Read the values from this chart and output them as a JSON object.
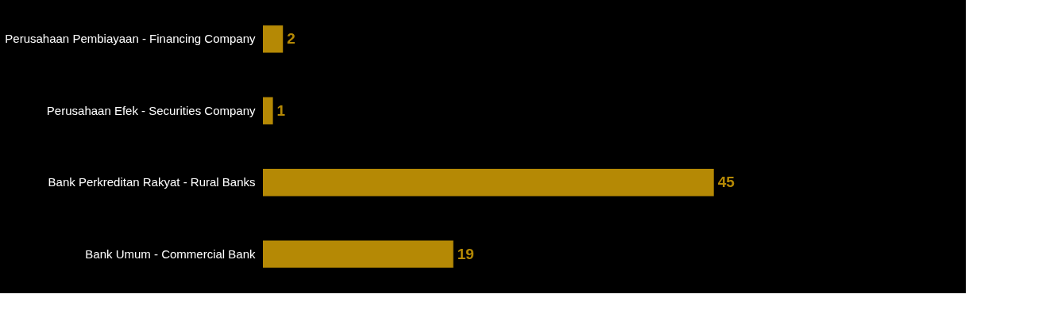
{
  "chart_data": {
    "type": "bar",
    "orientation": "horizontal",
    "categories": [
      "Perusahaan Pembiayaan - Financing Company",
      "Perusahaan Efek - Securities Company",
      "Bank Perkreditan Rakyat - Rural Banks",
      "Bank Umum  - Commercial Bank"
    ],
    "values": [
      2,
      1,
      45,
      19
    ],
    "color": "#b58905",
    "data_labels": true
  }
}
